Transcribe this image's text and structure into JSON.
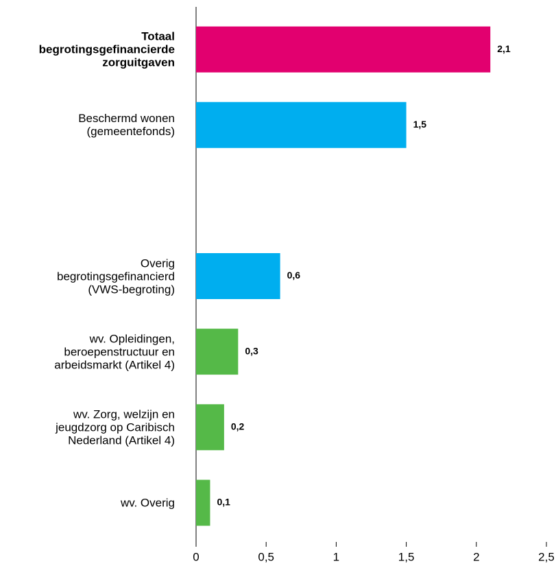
{
  "chart_data": {
    "type": "bar",
    "orientation": "horizontal",
    "categories": [
      "Totaal\nbegrotingsgefinancierde\nzorguitgaven",
      "Beschermd wonen\n(gemeentefonds)",
      null,
      "Overig\nbegrotingsgefinancierd\n(VWS-begroting)",
      "wv. Opleidingen,\nberoepenstructuur en\narbeidsmarkt (Artikel 4)",
      "wv. Zorg, welzijn en\njeugdzorg op Caribisch\nNederland (Artikel 4)",
      "wv. Overig"
    ],
    "values": [
      2.1,
      1.5,
      null,
      0.6,
      0.3,
      0.2,
      0.1
    ],
    "value_labels": [
      "2,1",
      "1,5",
      null,
      "0,6",
      "0,3",
      "0,2",
      "0,1"
    ],
    "colors": [
      "#e2006f",
      "#00aeef",
      null,
      "#00aeef",
      "#55b948",
      "#55b948",
      "#55b948"
    ],
    "xlim": [
      0,
      2.5
    ],
    "xticks": [
      0,
      {
        "value": 0.5,
        "label": "0,5"
      },
      1,
      {
        "value": 1.5,
        "label": "1,5"
      },
      2,
      {
        "value": 2.5,
        "label": "2,5"
      }
    ],
    "grid": false
  }
}
